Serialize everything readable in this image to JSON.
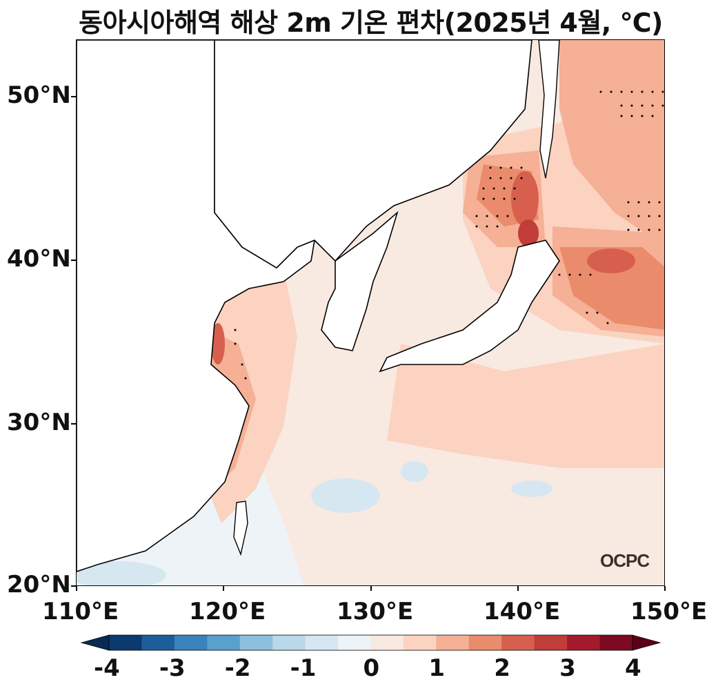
{
  "title": "동아시아해역 해상 2m 기온 편차(2025년 4월, ℃)",
  "y_ticks": [
    "50°N",
    "40°N",
    "30°N",
    "20°N"
  ],
  "x_ticks": [
    "110°E",
    "120°E",
    "130°E",
    "140°E",
    "150°E"
  ],
  "colorbar_ticks": [
    "-4",
    "-3",
    "-2",
    "-1",
    "0",
    "1",
    "2",
    "3",
    "4"
  ],
  "colorbar_colors": [
    "#0b3a6f",
    "#1c5d9c",
    "#3a82bd",
    "#5aa0cc",
    "#8cc0dd",
    "#b9d8ea",
    "#d6e7f2",
    "#eef3f8",
    "#f8e9e1",
    "#fbd3c0",
    "#f5b095",
    "#ea8b6c",
    "#d6604d",
    "#c13d3a",
    "#a31a2c",
    "#7d0a22"
  ],
  "logo": "OCPC",
  "chart_data": {
    "type": "heatmap",
    "title": "동아시아해역 해상 2m 기온 편차(2025년 4월, ℃)",
    "x_range": [
      110,
      150
    ],
    "y_range": [
      20,
      53.5
    ],
    "colorbar_range": [
      -4,
      4
    ],
    "x_ticks": [
      "110°E",
      "120°E",
      "130°E",
      "140°E",
      "150°E"
    ],
    "y_ticks": [
      "20°N",
      "30°N",
      "40°N",
      "50°N"
    ],
    "unit": "℃"
  }
}
